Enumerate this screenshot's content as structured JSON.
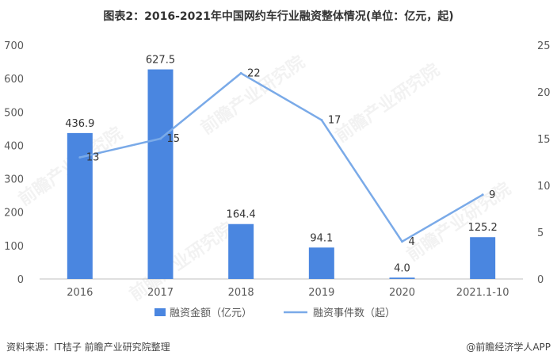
{
  "chart_data": {
    "type": "bar",
    "title": "图表2：2016-2021年中国网约车行业融资整体情况(单位：亿元，起)",
    "categories": [
      "2016",
      "2017",
      "2018",
      "2019",
      "2020",
      "2021.1-10"
    ],
    "series": [
      {
        "name": "融资金额（亿元）",
        "type": "bar",
        "axis": "left",
        "color": "#4a86e0",
        "values": [
          436.9,
          627.5,
          164.4,
          94.1,
          4.0,
          125.2
        ],
        "labels": [
          "436.9",
          "627.5",
          "164.4",
          "94.1",
          "4.0",
          "125.2"
        ]
      },
      {
        "name": "融资事件数（起）",
        "type": "line",
        "axis": "right",
        "color": "#7aaae8",
        "values": [
          13,
          15,
          22,
          17,
          4,
          9
        ],
        "labels": [
          "13",
          "15",
          "22",
          "17",
          "4",
          "9"
        ]
      }
    ],
    "left_axis": {
      "min": 0,
      "max": 700,
      "ticks": [
        "0",
        "100",
        "200",
        "300",
        "400",
        "500",
        "600",
        "700"
      ]
    },
    "right_axis": {
      "min": 0,
      "max": 25,
      "ticks": [
        "0",
        "5",
        "10",
        "15",
        "20",
        "25"
      ]
    },
    "legend_position": "bottom"
  },
  "footer": {
    "source": "资料来源：IT桔子 前瞻产业研究院整理",
    "brand": "@前瞻经济学人APP"
  },
  "watermark": "前瞻产业研究院"
}
